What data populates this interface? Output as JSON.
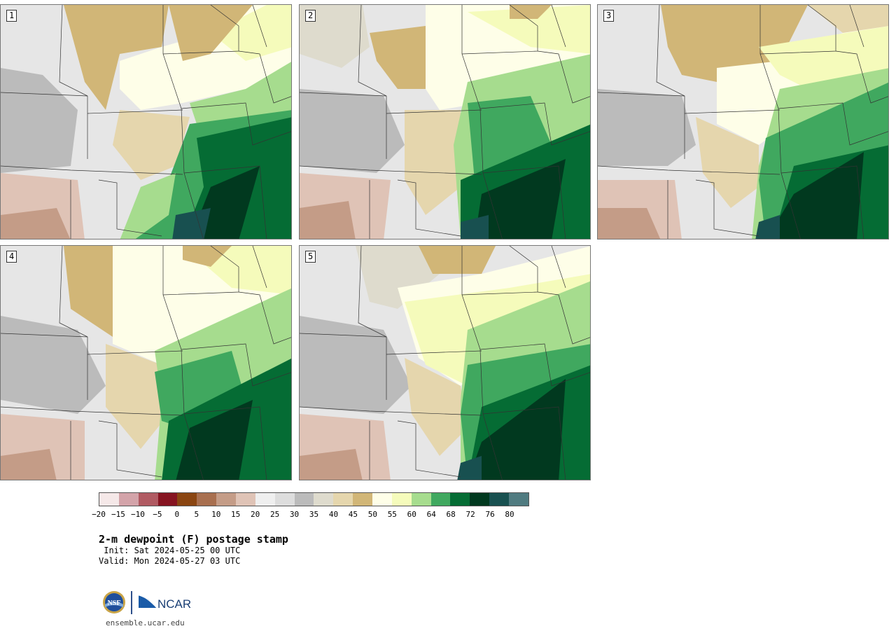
{
  "panels": [
    {
      "label": "1"
    },
    {
      "label": "2"
    },
    {
      "label": "3"
    },
    {
      "label": "4"
    },
    {
      "label": "5"
    }
  ],
  "colorbar": {
    "colors": [
      "#f5e8e8",
      "#d3a3a9",
      "#b05a62",
      "#861421",
      "#8a4511",
      "#a86f4f",
      "#c49c87",
      "#dfc3b6",
      "#efefef",
      "#dddddd",
      "#bbbbbb",
      "#dedbcd",
      "#e5d6ad",
      "#d1b677",
      "#fefee8",
      "#f5fbbb",
      "#a6dc8e",
      "#40a85f",
      "#056c34",
      "#01391f",
      "#185050",
      "#507b80"
    ],
    "ticks": [
      "−20",
      "−15",
      "−10",
      "−5",
      "0",
      "5",
      "10",
      "15",
      "20",
      "25",
      "30",
      "35",
      "40",
      "45",
      "50",
      "55",
      "60",
      "64",
      "68",
      "72",
      "76",
      "80"
    ]
  },
  "title": "2-m dewpoint (F) postage stamp",
  "init_line": " Init: Sat 2024-05-25 00 UTC",
  "valid_line": "Valid: Mon 2024-05-27 03 UTC",
  "footer": {
    "nsf_text": "NSF",
    "ncar_text": "NCAR",
    "url": "ensemble.ucar.edu"
  },
  "theme": {
    "state_line": "#333333",
    "panel_border": "#777777"
  }
}
